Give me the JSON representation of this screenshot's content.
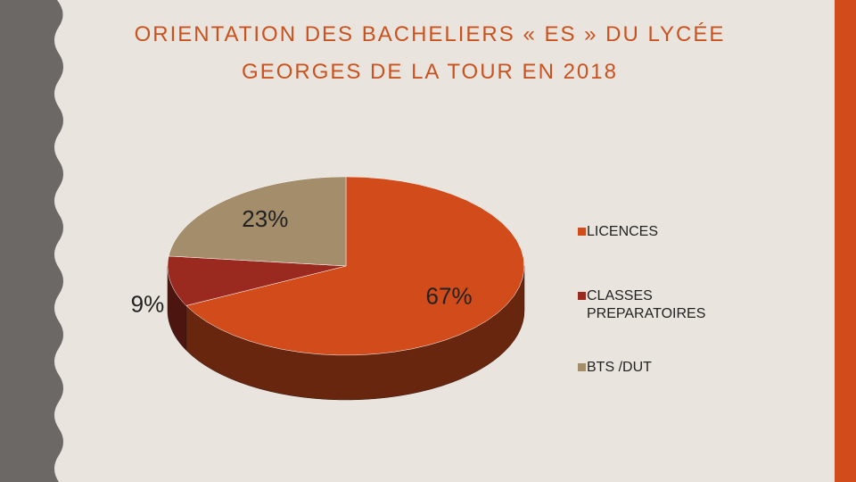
{
  "chart_data": {
    "type": "pie",
    "title": [
      "ORIENTATION  DES BACHELIERS « ES » DU LYCÉE",
      "GEORGES DE LA TOUR EN 2018"
    ],
    "categories": [
      "LICENCES",
      "CLASSES PREPARATOIRES",
      "BTS /DUT"
    ],
    "values": [
      67,
      9,
      23
    ],
    "value_labels": [
      "67%",
      "9%",
      "23%"
    ],
    "colors": [
      "#D14B1B",
      "#9A2A1F",
      "#A38D6B"
    ],
    "legend": "right"
  }
}
